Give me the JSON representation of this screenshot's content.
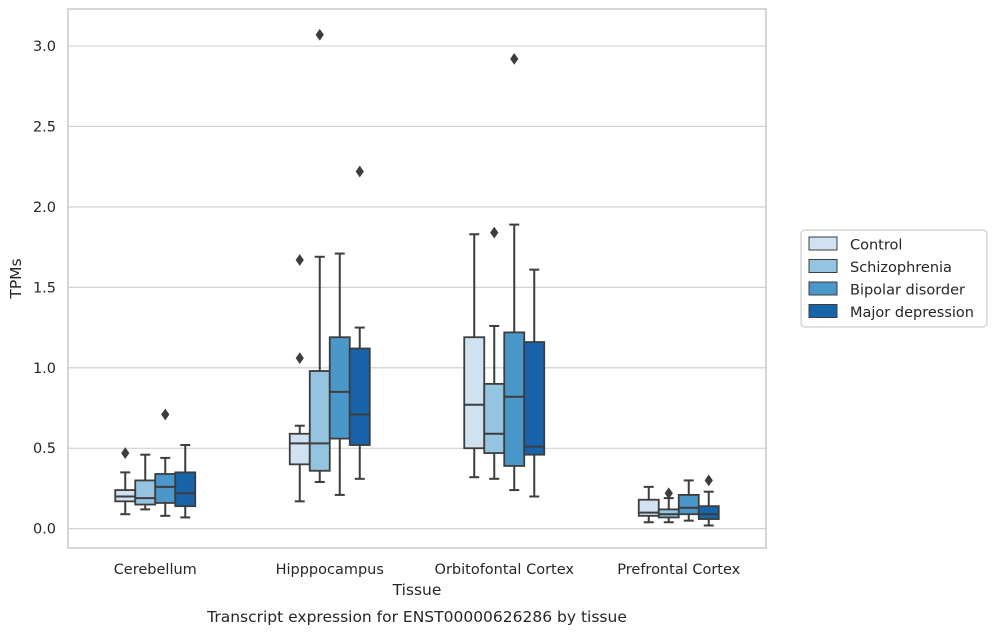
{
  "chart_data": {
    "type": "box",
    "title": "Transcript expression for ENST00000626286 by tissue",
    "xlabel": "Tissue",
    "ylabel": "TPMs",
    "ylim": [
      -0.12,
      3.23
    ],
    "yticks": [
      0.0,
      0.5,
      1.0,
      1.5,
      2.0,
      2.5,
      3.0
    ],
    "ytick_labels": [
      "0.0",
      "0.5",
      "1.0",
      "1.5",
      "2.0",
      "2.5",
      "3.0"
    ],
    "grid": "horizontal",
    "legend_position": "right",
    "categories": [
      "Cerebellum",
      "Hipppocampus",
      "Orbitofontal Cortex",
      "Prefrontal Cortex"
    ],
    "series": [
      {
        "name": "Control",
        "color": "#d0e1f2",
        "boxes": [
          {
            "whisker_low": 0.09,
            "q1": 0.17,
            "median": 0.2,
            "q3": 0.24,
            "whisker_high": 0.35,
            "outliers": [
              0.47
            ]
          },
          {
            "whisker_low": 0.17,
            "q1": 0.4,
            "median": 0.53,
            "q3": 0.59,
            "whisker_high": 0.64,
            "outliers": [
              1.06,
              1.67
            ]
          },
          {
            "whisker_low": 0.32,
            "q1": 0.5,
            "median": 0.77,
            "q3": 1.19,
            "whisker_high": 1.83,
            "outliers": []
          },
          {
            "whisker_low": 0.04,
            "q1": 0.08,
            "median": 0.1,
            "q3": 0.18,
            "whisker_high": 0.26,
            "outliers": []
          }
        ]
      },
      {
        "name": "Schizophrenia",
        "color": "#94c4df",
        "boxes": [
          {
            "whisker_low": 0.12,
            "q1": 0.15,
            "median": 0.19,
            "q3": 0.3,
            "whisker_high": 0.46,
            "outliers": []
          },
          {
            "whisker_low": 0.29,
            "q1": 0.36,
            "median": 0.53,
            "q3": 0.98,
            "whisker_high": 1.69,
            "outliers": [
              3.07
            ]
          },
          {
            "whisker_low": 0.31,
            "q1": 0.47,
            "median": 0.59,
            "q3": 0.9,
            "whisker_high": 1.26,
            "outliers": [
              1.84
            ]
          },
          {
            "whisker_low": 0.04,
            "q1": 0.07,
            "median": 0.09,
            "q3": 0.12,
            "whisker_high": 0.19,
            "outliers": [
              0.22
            ]
          }
        ]
      },
      {
        "name": "Bipolar disorder",
        "color": "#4a98c9",
        "boxes": [
          {
            "whisker_low": 0.08,
            "q1": 0.16,
            "median": 0.26,
            "q3": 0.34,
            "whisker_high": 0.44,
            "outliers": [
              0.71
            ]
          },
          {
            "whisker_low": 0.21,
            "q1": 0.56,
            "median": 0.85,
            "q3": 1.19,
            "whisker_high": 1.71,
            "outliers": []
          },
          {
            "whisker_low": 0.24,
            "q1": 0.39,
            "median": 0.82,
            "q3": 1.22,
            "whisker_high": 1.89,
            "outliers": [
              2.92
            ]
          },
          {
            "whisker_low": 0.05,
            "q1": 0.09,
            "median": 0.13,
            "q3": 0.21,
            "whisker_high": 0.3,
            "outliers": []
          }
        ]
      },
      {
        "name": "Major depression",
        "color": "#1764ab",
        "boxes": [
          {
            "whisker_low": 0.07,
            "q1": 0.14,
            "median": 0.22,
            "q3": 0.35,
            "whisker_high": 0.52,
            "outliers": []
          },
          {
            "whisker_low": 0.31,
            "q1": 0.52,
            "median": 0.71,
            "q3": 1.12,
            "whisker_high": 1.25,
            "outliers": [
              2.22
            ]
          },
          {
            "whisker_low": 0.2,
            "q1": 0.46,
            "median": 0.51,
            "q3": 1.16,
            "whisker_high": 1.61,
            "outliers": []
          },
          {
            "whisker_low": 0.02,
            "q1": 0.06,
            "median": 0.09,
            "q3": 0.14,
            "whisker_high": 0.23,
            "outliers": [
              0.3
            ]
          }
        ]
      }
    ]
  }
}
